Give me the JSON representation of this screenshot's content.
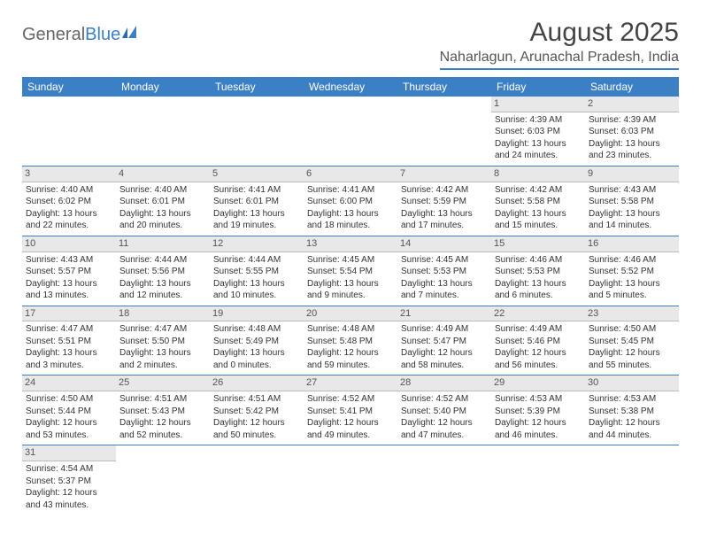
{
  "logo": {
    "general": "General",
    "blue": "Blue"
  },
  "title": "August 2025",
  "location": "Naharlagun, Arunachal Pradesh, India",
  "colors": {
    "accent": "#3b7fc4",
    "header_bg": "#3b7fc4",
    "daynum_bg": "#e8e8e8"
  },
  "day_headers": [
    "Sunday",
    "Monday",
    "Tuesday",
    "Wednesday",
    "Thursday",
    "Friday",
    "Saturday"
  ],
  "weeks": [
    [
      {
        "n": "",
        "sr": "",
        "ss": "",
        "dl": ""
      },
      {
        "n": "",
        "sr": "",
        "ss": "",
        "dl": ""
      },
      {
        "n": "",
        "sr": "",
        "ss": "",
        "dl": ""
      },
      {
        "n": "",
        "sr": "",
        "ss": "",
        "dl": ""
      },
      {
        "n": "",
        "sr": "",
        "ss": "",
        "dl": ""
      },
      {
        "n": "1",
        "sr": "Sunrise: 4:39 AM",
        "ss": "Sunset: 6:03 PM",
        "dl": "Daylight: 13 hours and 24 minutes."
      },
      {
        "n": "2",
        "sr": "Sunrise: 4:39 AM",
        "ss": "Sunset: 6:03 PM",
        "dl": "Daylight: 13 hours and 23 minutes."
      }
    ],
    [
      {
        "n": "3",
        "sr": "Sunrise: 4:40 AM",
        "ss": "Sunset: 6:02 PM",
        "dl": "Daylight: 13 hours and 22 minutes."
      },
      {
        "n": "4",
        "sr": "Sunrise: 4:40 AM",
        "ss": "Sunset: 6:01 PM",
        "dl": "Daylight: 13 hours and 20 minutes."
      },
      {
        "n": "5",
        "sr": "Sunrise: 4:41 AM",
        "ss": "Sunset: 6:01 PM",
        "dl": "Daylight: 13 hours and 19 minutes."
      },
      {
        "n": "6",
        "sr": "Sunrise: 4:41 AM",
        "ss": "Sunset: 6:00 PM",
        "dl": "Daylight: 13 hours and 18 minutes."
      },
      {
        "n": "7",
        "sr": "Sunrise: 4:42 AM",
        "ss": "Sunset: 5:59 PM",
        "dl": "Daylight: 13 hours and 17 minutes."
      },
      {
        "n": "8",
        "sr": "Sunrise: 4:42 AM",
        "ss": "Sunset: 5:58 PM",
        "dl": "Daylight: 13 hours and 15 minutes."
      },
      {
        "n": "9",
        "sr": "Sunrise: 4:43 AM",
        "ss": "Sunset: 5:58 PM",
        "dl": "Daylight: 13 hours and 14 minutes."
      }
    ],
    [
      {
        "n": "10",
        "sr": "Sunrise: 4:43 AM",
        "ss": "Sunset: 5:57 PM",
        "dl": "Daylight: 13 hours and 13 minutes."
      },
      {
        "n": "11",
        "sr": "Sunrise: 4:44 AM",
        "ss": "Sunset: 5:56 PM",
        "dl": "Daylight: 13 hours and 12 minutes."
      },
      {
        "n": "12",
        "sr": "Sunrise: 4:44 AM",
        "ss": "Sunset: 5:55 PM",
        "dl": "Daylight: 13 hours and 10 minutes."
      },
      {
        "n": "13",
        "sr": "Sunrise: 4:45 AM",
        "ss": "Sunset: 5:54 PM",
        "dl": "Daylight: 13 hours and 9 minutes."
      },
      {
        "n": "14",
        "sr": "Sunrise: 4:45 AM",
        "ss": "Sunset: 5:53 PM",
        "dl": "Daylight: 13 hours and 7 minutes."
      },
      {
        "n": "15",
        "sr": "Sunrise: 4:46 AM",
        "ss": "Sunset: 5:53 PM",
        "dl": "Daylight: 13 hours and 6 minutes."
      },
      {
        "n": "16",
        "sr": "Sunrise: 4:46 AM",
        "ss": "Sunset: 5:52 PM",
        "dl": "Daylight: 13 hours and 5 minutes."
      }
    ],
    [
      {
        "n": "17",
        "sr": "Sunrise: 4:47 AM",
        "ss": "Sunset: 5:51 PM",
        "dl": "Daylight: 13 hours and 3 minutes."
      },
      {
        "n": "18",
        "sr": "Sunrise: 4:47 AM",
        "ss": "Sunset: 5:50 PM",
        "dl": "Daylight: 13 hours and 2 minutes."
      },
      {
        "n": "19",
        "sr": "Sunrise: 4:48 AM",
        "ss": "Sunset: 5:49 PM",
        "dl": "Daylight: 13 hours and 0 minutes."
      },
      {
        "n": "20",
        "sr": "Sunrise: 4:48 AM",
        "ss": "Sunset: 5:48 PM",
        "dl": "Daylight: 12 hours and 59 minutes."
      },
      {
        "n": "21",
        "sr": "Sunrise: 4:49 AM",
        "ss": "Sunset: 5:47 PM",
        "dl": "Daylight: 12 hours and 58 minutes."
      },
      {
        "n": "22",
        "sr": "Sunrise: 4:49 AM",
        "ss": "Sunset: 5:46 PM",
        "dl": "Daylight: 12 hours and 56 minutes."
      },
      {
        "n": "23",
        "sr": "Sunrise: 4:50 AM",
        "ss": "Sunset: 5:45 PM",
        "dl": "Daylight: 12 hours and 55 minutes."
      }
    ],
    [
      {
        "n": "24",
        "sr": "Sunrise: 4:50 AM",
        "ss": "Sunset: 5:44 PM",
        "dl": "Daylight: 12 hours and 53 minutes."
      },
      {
        "n": "25",
        "sr": "Sunrise: 4:51 AM",
        "ss": "Sunset: 5:43 PM",
        "dl": "Daylight: 12 hours and 52 minutes."
      },
      {
        "n": "26",
        "sr": "Sunrise: 4:51 AM",
        "ss": "Sunset: 5:42 PM",
        "dl": "Daylight: 12 hours and 50 minutes."
      },
      {
        "n": "27",
        "sr": "Sunrise: 4:52 AM",
        "ss": "Sunset: 5:41 PM",
        "dl": "Daylight: 12 hours and 49 minutes."
      },
      {
        "n": "28",
        "sr": "Sunrise: 4:52 AM",
        "ss": "Sunset: 5:40 PM",
        "dl": "Daylight: 12 hours and 47 minutes."
      },
      {
        "n": "29",
        "sr": "Sunrise: 4:53 AM",
        "ss": "Sunset: 5:39 PM",
        "dl": "Daylight: 12 hours and 46 minutes."
      },
      {
        "n": "30",
        "sr": "Sunrise: 4:53 AM",
        "ss": "Sunset: 5:38 PM",
        "dl": "Daylight: 12 hours and 44 minutes."
      }
    ],
    [
      {
        "n": "31",
        "sr": "Sunrise: 4:54 AM",
        "ss": "Sunset: 5:37 PM",
        "dl": "Daylight: 12 hours and 43 minutes."
      },
      {
        "n": "",
        "sr": "",
        "ss": "",
        "dl": ""
      },
      {
        "n": "",
        "sr": "",
        "ss": "",
        "dl": ""
      },
      {
        "n": "",
        "sr": "",
        "ss": "",
        "dl": ""
      },
      {
        "n": "",
        "sr": "",
        "ss": "",
        "dl": ""
      },
      {
        "n": "",
        "sr": "",
        "ss": "",
        "dl": ""
      },
      {
        "n": "",
        "sr": "",
        "ss": "",
        "dl": ""
      }
    ]
  ]
}
